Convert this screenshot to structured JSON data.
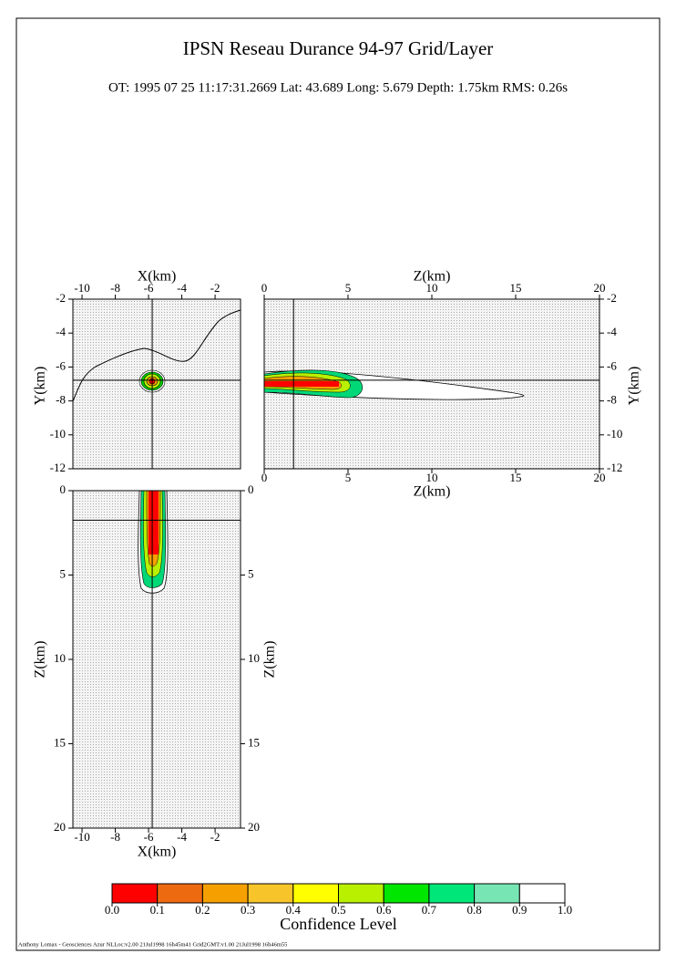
{
  "title": "IPSN Reseau Durance 94-97 Grid/Layer",
  "subtitle": "OT: 1995 07 25  11:17:31.2669   Lat: 43.689   Long: 5.679   Depth: 1.75km   RMS: 0.26s",
  "footer": "Anthony Lomax - Geosciences Azur    NLLoc:v2.00 21Jul1998 16h45m41    Grid2GMT:v1.00 21Jul1998 16h46m55",
  "chart_data": [
    {
      "type": "contour",
      "xlabel": "X(km)",
      "ylabel": "Y(km)",
      "xlim": [
        -10.55,
        -0.47
      ],
      "ylim": [
        -12,
        -2
      ],
      "xticks": [
        -10,
        -8,
        -6,
        -4,
        -2
      ],
      "yticks": [
        -12,
        -10,
        -8,
        -6,
        -4,
        -2
      ],
      "crosshair": {
        "x": -5.78,
        "y": -6.78
      }
    },
    {
      "type": "contour",
      "xlabel": "Z(km)",
      "ylabel": "Y(km)",
      "xlim": [
        0,
        20
      ],
      "ylim": [
        -12,
        -2
      ],
      "xticks": [
        0,
        5,
        10,
        15,
        20
      ],
      "yticks": [
        -12,
        -10,
        -8,
        -6,
        -4,
        -2
      ],
      "crosshair": {
        "x": 1.75,
        "y": -6.78
      }
    },
    {
      "type": "contour",
      "xlabel": "X(km)",
      "ylabel": "Z(km)",
      "xlim": [
        -10.55,
        -0.47
      ],
      "ylim": [
        20,
        0
      ],
      "xticks": [
        -10,
        -8,
        -6,
        -4,
        -2
      ],
      "yticks": [
        0,
        5,
        10,
        15,
        20
      ],
      "crosshair": {
        "x": -5.78,
        "y": 1.75
      }
    },
    {
      "type": "colorbar",
      "label": "Confidence Level",
      "colors": [
        "#ff0000",
        "#ee6a10",
        "#f5a000",
        "#f7c52a",
        "#ffff00",
        "#b9f000",
        "#00e600",
        "#00e678",
        "#78e6b4",
        "#ffffff"
      ],
      "xlim": [
        0,
        1
      ],
      "xticks": [
        {
          "value": 0,
          "label": "0.0"
        },
        {
          "value": 0.1,
          "label": "0.1"
        },
        {
          "value": 0.2,
          "label": "0.2"
        },
        {
          "value": 0.3,
          "label": "0.3"
        },
        {
          "value": 0.4,
          "label": "0.4"
        },
        {
          "value": 0.5,
          "label": "0.5"
        },
        {
          "value": 0.6,
          "label": "0.6"
        },
        {
          "value": 0.7,
          "label": "0.7"
        },
        {
          "value": 0.8,
          "label": "0.8"
        },
        {
          "value": 0.9,
          "label": "0.9"
        },
        {
          "value": 1,
          "label": "1.0"
        }
      ]
    }
  ]
}
